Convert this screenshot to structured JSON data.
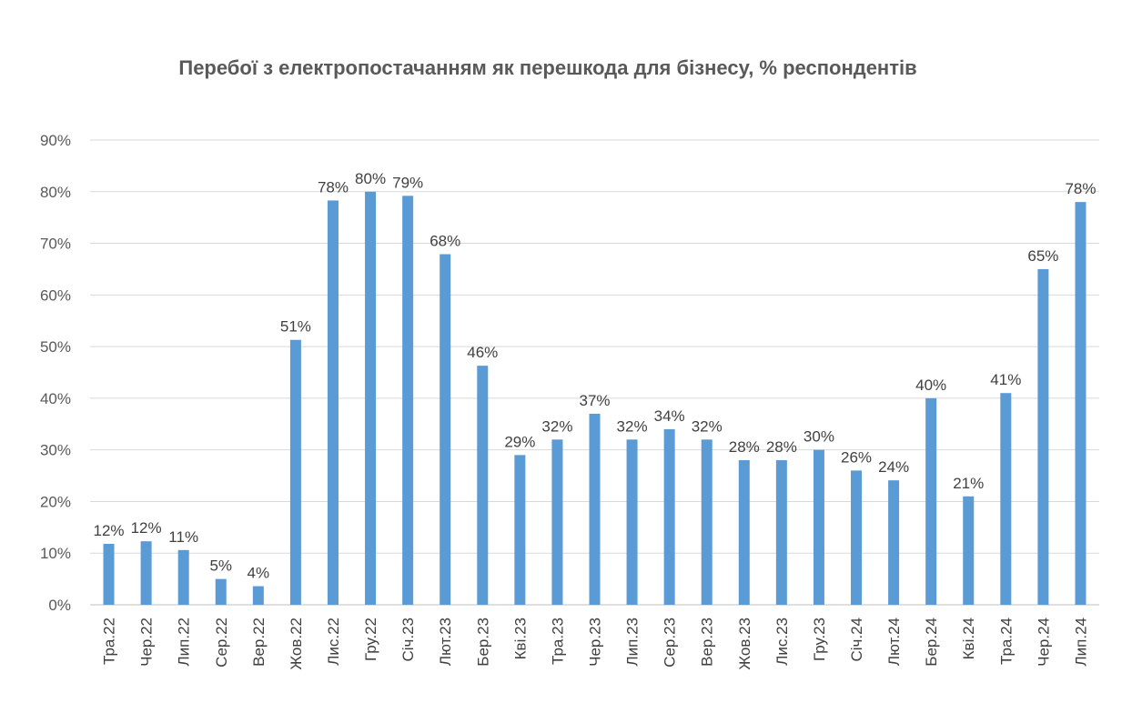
{
  "chart_data": {
    "type": "bar",
    "title": "Перебої з електропостачанням як перешкода для бізнесу, % респондентів",
    "xlabel": "",
    "ylabel": "",
    "ylim": [
      0,
      90
    ],
    "yticks": [
      "0%",
      "10%",
      "20%",
      "30%",
      "40%",
      "50%",
      "60%",
      "70%",
      "80%",
      "90%"
    ],
    "grid": true,
    "bar_color": "#5b9bd5",
    "categories": [
      "Тра.22",
      "Чер.22",
      "Лип.22",
      "Сер.22",
      "Вер.22",
      "Жов.22",
      "Лис.22",
      "Гру.22",
      "Січ.23",
      "Лют.23",
      "Бер.23",
      "Кві.23",
      "Тра.23",
      "Чер.23",
      "Лип.23",
      "Сер.23",
      "Вер.23",
      "Жов.23",
      "Лис.23",
      "Гру.23",
      "Січ.24",
      "Лют.24",
      "Бер.24",
      "Кві.24",
      "Тра.24",
      "Чер.24",
      "Лип.24"
    ],
    "values": [
      11.8,
      12.3,
      10.6,
      5.0,
      3.6,
      51.3,
      78.3,
      80.0,
      79.2,
      67.9,
      46.3,
      29.0,
      32.0,
      37.0,
      32.0,
      34.0,
      32.0,
      28.0,
      28.0,
      30.0,
      26.0,
      24.1,
      40.0,
      21.0,
      41.0,
      65.0,
      78.0
    ],
    "data_labels": [
      "12%",
      "12%",
      "11%",
      "5%",
      "4%",
      "51%",
      "78%",
      "80%",
      "79%",
      "68%",
      "46%",
      "29%",
      "32%",
      "37%",
      "32%",
      "34%",
      "32%",
      "28%",
      "28%",
      "30%",
      "26%",
      "24%",
      "40%",
      "21%",
      "41%",
      "65%",
      "78%"
    ]
  }
}
